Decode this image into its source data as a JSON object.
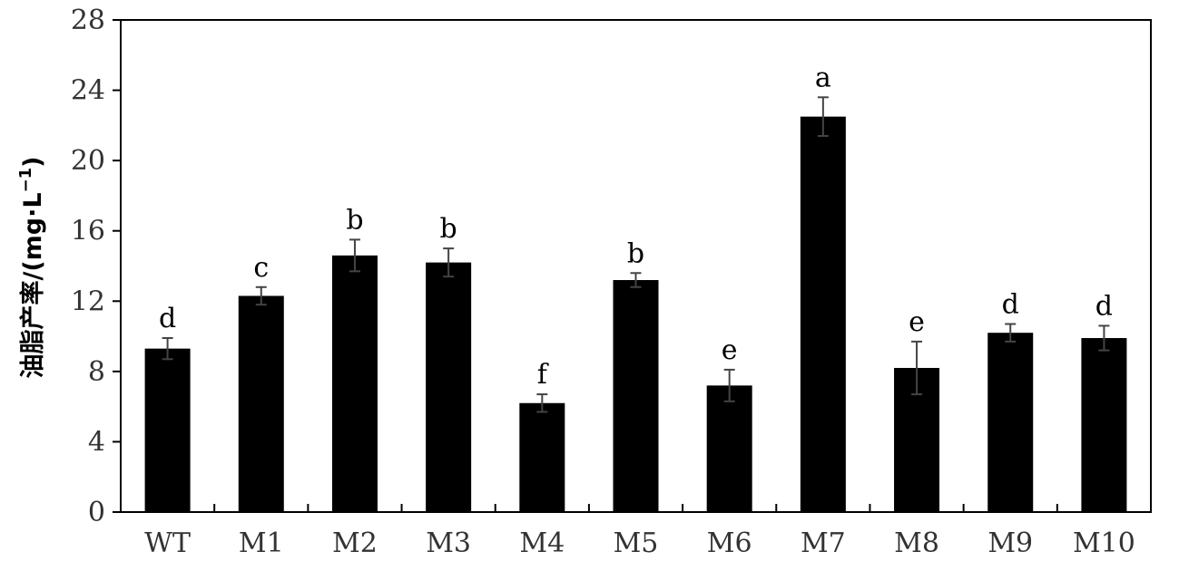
{
  "chart_data": {
    "type": "bar",
    "categories": [
      "WT",
      "M1",
      "M2",
      "M3",
      "M4",
      "M5",
      "M6",
      "M7",
      "M8",
      "M9",
      "M10"
    ],
    "values": [
      9.3,
      12.3,
      14.6,
      14.2,
      6.2,
      13.2,
      7.2,
      22.5,
      8.2,
      10.2,
      9.9
    ],
    "errors": [
      0.6,
      0.5,
      0.9,
      0.8,
      0.5,
      0.4,
      0.9,
      1.1,
      1.5,
      0.5,
      0.7
    ],
    "significance": [
      "d",
      "c",
      "b",
      "b",
      "f",
      "b",
      "e",
      "a",
      "e",
      "d",
      "d"
    ],
    "xlabel": "",
    "ylabel": "油脂产率/(mg·L",
    "ylabel_sup": "−1",
    "ylabel_close": ")",
    "ylim": [
      0,
      28
    ],
    "yticks": [
      0,
      4,
      8,
      12,
      16,
      20,
      24,
      28
    ],
    "grid": false,
    "bar_color": "#000000",
    "error_color": "#444444"
  }
}
